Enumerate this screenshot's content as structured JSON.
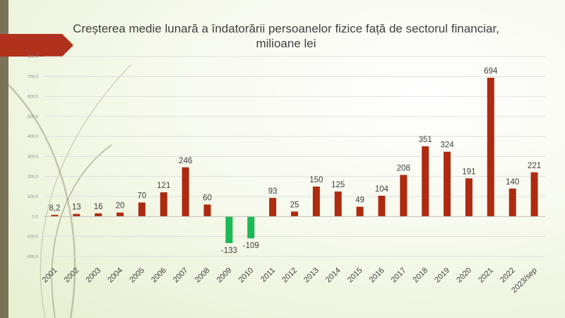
{
  "slide": {
    "title": "Creșterea medie lunară a îndatorării persoanelor fizice față de sectorul financiar, milioane lei",
    "colors": {
      "side_bar": "#7b7358",
      "arrow": "#b0311c",
      "deco_lines": "#a49f7e"
    }
  },
  "chart_data": {
    "type": "bar",
    "title": "Creșterea medie lunară a îndatorării persoanelor fizice față de sectorul financiar, milioane lei",
    "xlabel": "",
    "ylabel": "",
    "categories": [
      "2001",
      "2002",
      "2003",
      "2004",
      "2005",
      "2006",
      "2007",
      "2008",
      "2009",
      "2010",
      "2011",
      "2012",
      "2013",
      "2014",
      "2015",
      "2016",
      "2017",
      "2018",
      "2019",
      "2020",
      "2021",
      "2022",
      "2023/sep"
    ],
    "values": [
      8.2,
      13,
      16,
      20,
      70,
      121,
      246,
      60,
      -133,
      -109,
      93,
      25,
      150,
      125,
      49,
      104,
      208,
      351,
      324,
      191,
      694,
      140,
      221
    ],
    "data_labels": [
      "8,2",
      "13",
      "16",
      "20",
      "70",
      "121",
      "246",
      "60",
      "-133",
      "-109",
      "93",
      "25",
      "150",
      "125",
      "49",
      "104",
      "208",
      "351",
      "324",
      "191",
      "694",
      "140",
      "221"
    ],
    "ylim": [
      -200,
      800
    ],
    "yticks": [
      -200,
      -100,
      0,
      100,
      200,
      300,
      400,
      500,
      600,
      700,
      800
    ],
    "ytick_labels": [
      "-200,0",
      "-100,0",
      "0,0",
      "100,0",
      "200,0",
      "300,0",
      "400,0",
      "500,0",
      "600,0",
      "700,0",
      "800,0"
    ],
    "grid": true,
    "legend": "none",
    "colors": {
      "positive": "#ae2b10",
      "negative": "#1db954",
      "grid": "#d9d9d9",
      "axis": "#bfbfbf",
      "text": "#404040"
    }
  }
}
